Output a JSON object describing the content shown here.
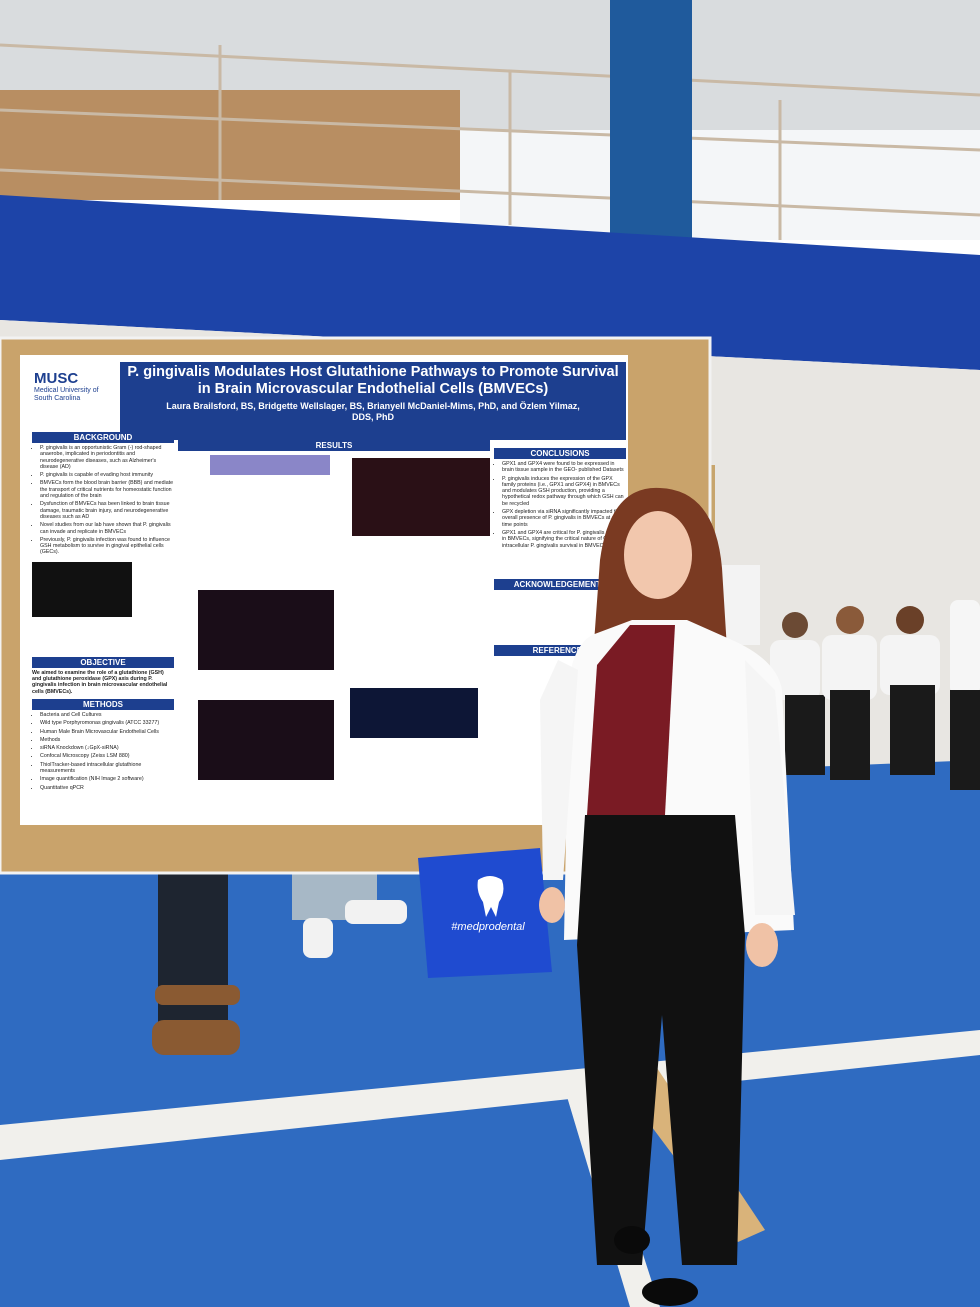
{
  "poster": {
    "logo": {
      "name": "MUSC",
      "subtitle": "Medical University of South Carolina"
    },
    "title": "P. gingivalis Modulates Host Glutathione Pathways to Promote Survival in Brain Microvascular Endothelial Cells (BMVECs)",
    "authors": "Laura Brailsford, BS, Bridgette Wellslager, BS, Brianyell McDaniel-Mims, PhD, and Özlem Yilmaz, DDS, PhD",
    "background": {
      "heading": "BACKGROUND",
      "items": [
        "P. gingivalis is an opportunistic Gram (-) rod-shaped anaerobe, implicated in periodontitis and neurodegenerative diseases, such as Alzheimer's disease (AD)",
        "P. gingivalis is capable of evading host immunity",
        "BMVECs form the blood brain barrier (BBB) and mediate the transport of critical nutrients for homeostatic function and regulation of the brain",
        "Dysfunction of BMVECs has been linked to brain tissue damage, traumatic brain injury, and neurodegenerative diseases such as AD",
        "Novel studies from our lab have shown that P. gingivalis can invade and replicate in BMVECs",
        "Previously, P. gingivalis infection was found to influence GSH metabolism to survive in gingival epithelial cells (GECs)."
      ]
    },
    "objective": {
      "heading": "OBJECTIVE",
      "text": "We aimed to examine the role of a glutathione (GSH) and glutathione peroxidase (GPX) axis during P. gingivalis infection in brain microvascular endothelial cells (BMVECs)."
    },
    "methods": {
      "heading": "METHODS",
      "items": [
        "Bacteria and Cell Cultures",
        "Wild type Porphyromonas gingivalis (ATCC 33277)",
        "Human Male Brain Microvascular Endothelial Cells",
        "Methods",
        "siRNA Knockdown (↓GpX-siRNA)",
        "Confocal Microscopy (Zeiss LSM 880)",
        "ThiolTracker-based intracellular glutathione measurements",
        "Image quantification (NIH Image 2 software)",
        "Quantitative qPCR"
      ]
    },
    "results": {
      "heading": "RESULTS"
    },
    "conclusions": {
      "heading": "CONCLUSIONS",
      "items": [
        "GPX1 and GPX4 were found to be expressed in brain tissue sample in the GEO- published Datasets",
        "P. gingivalis induces the expression of the GPX family proteins (i.e., GPX1 and GPX4) in BMVECs and modulates GSH production, providing a hypothetical redox pathway through which GSH can be recycled",
        "GPX depletion via siRNA significantly impacted the overall presence of P. gingivalis in BMVECs at all time points",
        "GPX1 and GPX4 are critical for P. gingivalis survival in BMVECs, signifying the critical nature of GSH in intracellular P. gingivalis survival in BMVECs."
      ]
    },
    "acknowledgements": {
      "heading": "ACKNOWLEDGEMENTS"
    },
    "references": {
      "heading": "REFERENCES"
    }
  },
  "bag": "#medprodental"
}
